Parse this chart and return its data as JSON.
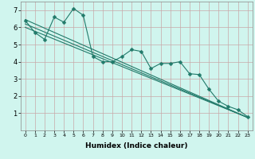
{
  "xlabel": "Humidex (Indice chaleur)",
  "xlim": [
    -0.5,
    23.5
  ],
  "ylim": [
    0,
    7.5
  ],
  "xticks": [
    0,
    1,
    2,
    3,
    4,
    5,
    6,
    7,
    8,
    9,
    10,
    11,
    12,
    13,
    14,
    15,
    16,
    17,
    18,
    19,
    20,
    21,
    22,
    23
  ],
  "yticks": [
    1,
    2,
    3,
    4,
    5,
    6,
    7
  ],
  "bg_color": "#d0f5ee",
  "grid_color": "#c8a8a8",
  "line_color": "#217a6a",
  "jagged_line": [
    6.4,
    5.7,
    5.3,
    6.6,
    6.3,
    7.1,
    6.7,
    4.3,
    4.0,
    4.0,
    4.3,
    4.7,
    4.6,
    3.6,
    3.9,
    3.9,
    4.0,
    3.3,
    3.25,
    2.4,
    1.7,
    1.4,
    1.2,
    0.8
  ],
  "regression_lines": [
    {
      "x0": 0,
      "y0": 6.45,
      "x1": 23,
      "y1": 0.75
    },
    {
      "x0": 0,
      "y0": 6.2,
      "x1": 23,
      "y1": 0.75
    },
    {
      "x0": 0,
      "y0": 6.0,
      "x1": 23,
      "y1": 0.75
    }
  ],
  "marker": "D",
  "markersize": 2.5,
  "linewidth": 0.8
}
